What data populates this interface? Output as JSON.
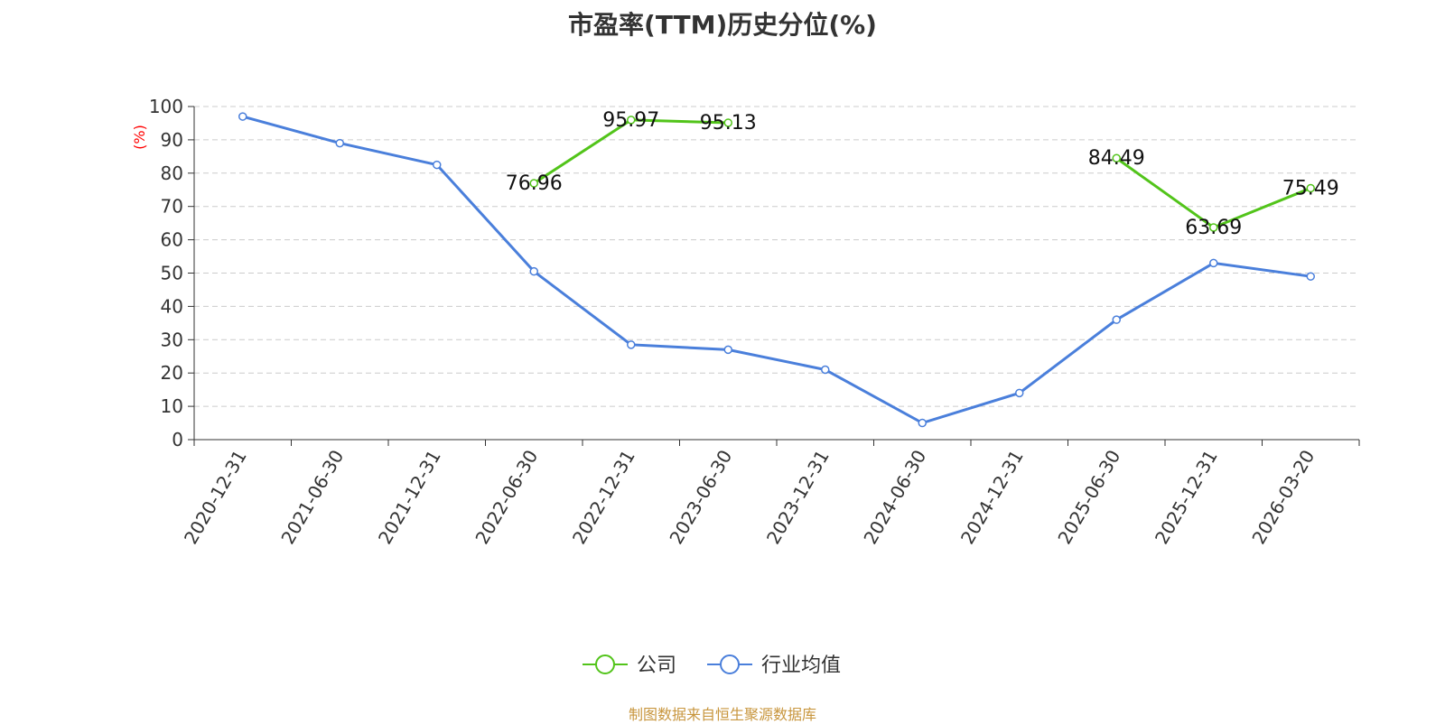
{
  "chart_data": {
    "type": "line",
    "title": "市盈率(TTM)历史分位(%)",
    "ylabel": "(%)",
    "xlabel": "",
    "categories": [
      "2020-12-31",
      "2021-06-30",
      "2021-12-31",
      "2022-06-30",
      "2022-12-31",
      "2023-06-30",
      "2023-12-31",
      "2024-06-30",
      "2024-12-31",
      "2025-06-30",
      "2025-12-31",
      "2026-03-20"
    ],
    "ylim": [
      0,
      100
    ],
    "yticks": [
      0,
      10,
      20,
      30,
      40,
      50,
      60,
      70,
      80,
      90,
      100
    ],
    "grid": true,
    "legend_position": "bottom-center",
    "series": [
      {
        "name": "公司",
        "color": "#52c41a",
        "values": [
          null,
          null,
          null,
          76.96,
          95.97,
          95.13,
          null,
          null,
          null,
          84.49,
          63.69,
          75.49
        ],
        "labels": true
      },
      {
        "name": "行业均值",
        "color": "#4a7fdb",
        "values": [
          97,
          89,
          82.5,
          50.5,
          28.5,
          27,
          21,
          5,
          14,
          36,
          53,
          49
        ],
        "labels": false
      }
    ]
  },
  "footer": {
    "text": "制图数据来自恒生聚源数据库",
    "color": "#c8963e"
  },
  "colors": {
    "axis": "#333333",
    "grid": "#cccccc",
    "ylabel": "#ff0000"
  }
}
